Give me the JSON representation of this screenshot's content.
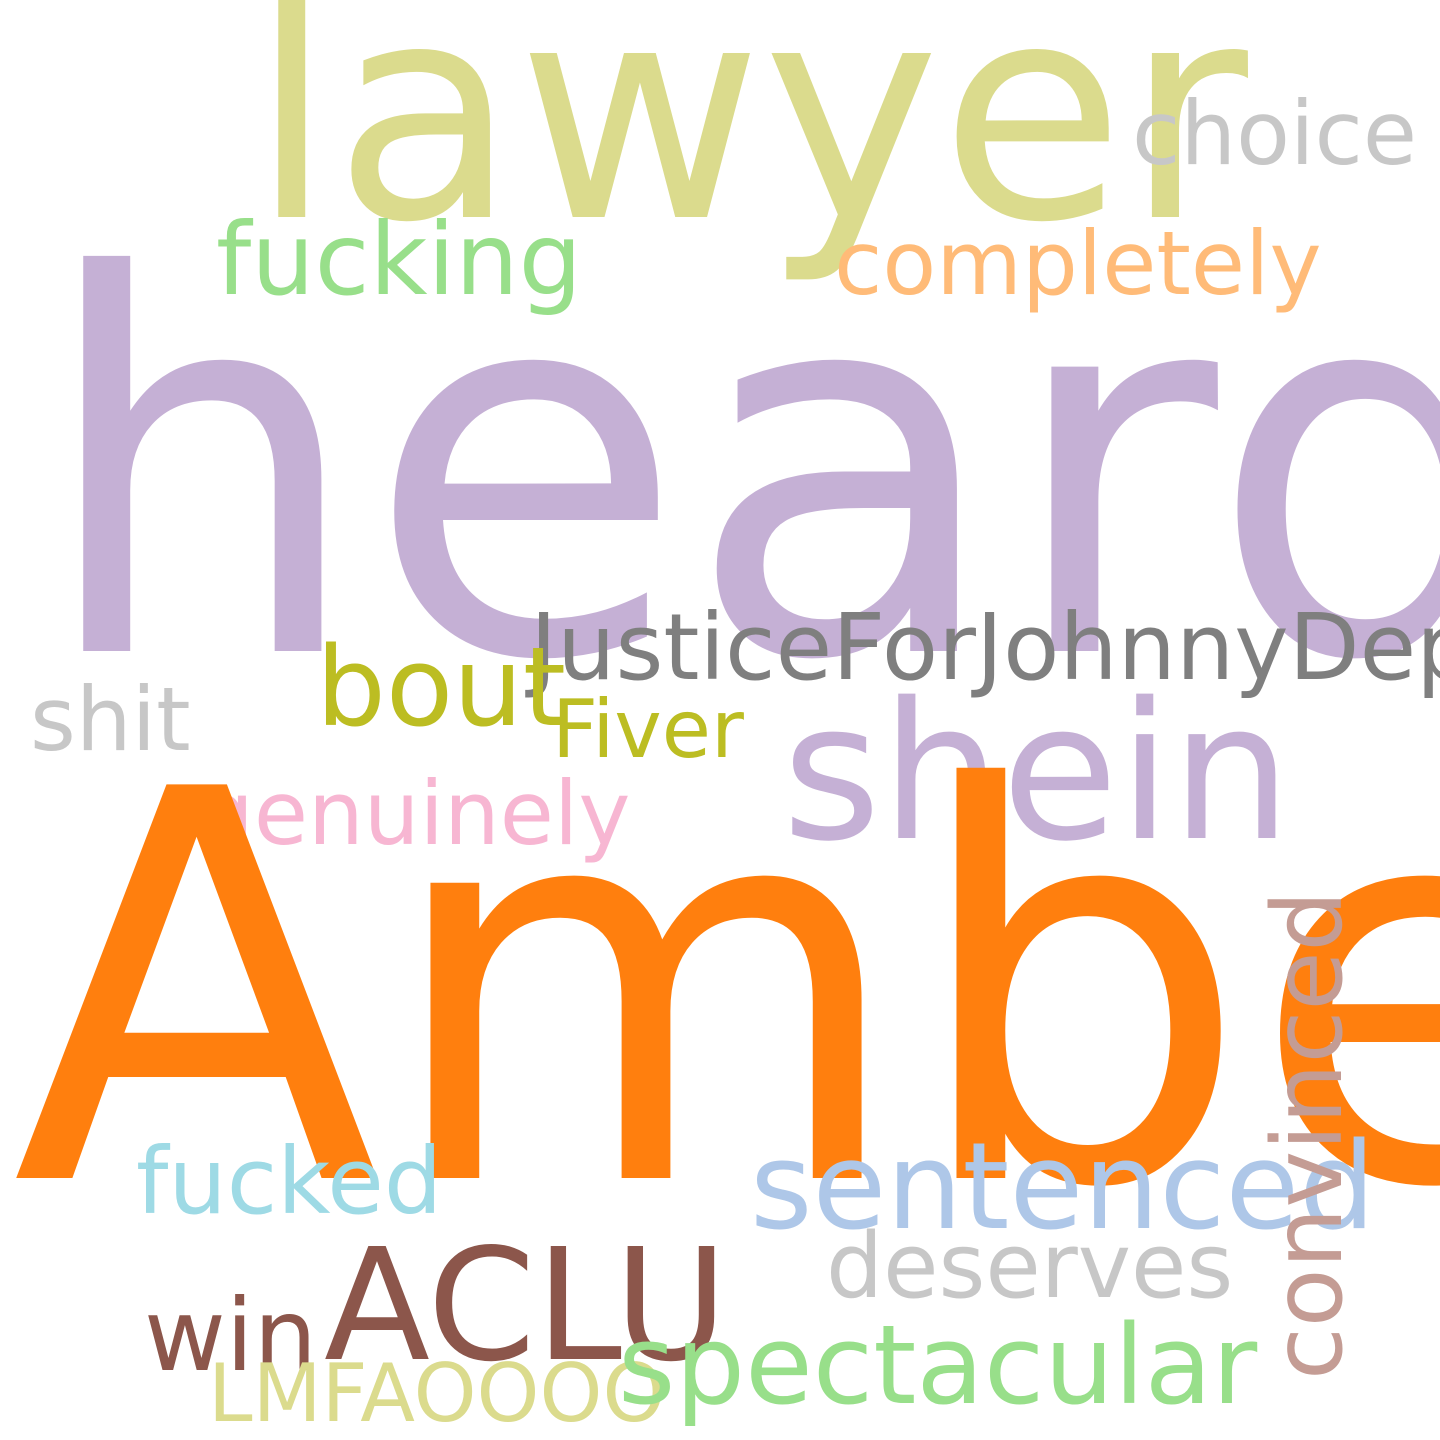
{
  "words": {
    "heard": "heard",
    "amber": "Amber",
    "lawyer": "lawyer",
    "choice": "choice",
    "fucking": "fucking",
    "completely": "completely",
    "justice": "JusticeForJohnnyDepp",
    "bout": "bout",
    "shit": "shit",
    "fiver": "Fiver",
    "shein": "shein",
    "genuinely": "genuinely",
    "fucked": "fucked",
    "sentenced": "sentenced",
    "deserves": "deserves",
    "win": "win",
    "aclu": "ACLU",
    "lmfao": "LMFAOOOO",
    "spectacular": "spectacular",
    "convinced": "convinced"
  },
  "colors": {
    "lavender": "#c5b0d5",
    "orange": "#ff7f0e",
    "khaki": "#dbdb8d",
    "light_gray": "#c7c7c7",
    "light_green": "#98df8a",
    "peach": "#ffbb78",
    "gray": "#7f7f7f",
    "olive": "#bcbd22",
    "pink": "#f7b6d2",
    "light_cyan": "#9edae5",
    "light_blue": "#aec7e8",
    "brown": "#8c564b",
    "rosy_brown": "#c49c94"
  }
}
